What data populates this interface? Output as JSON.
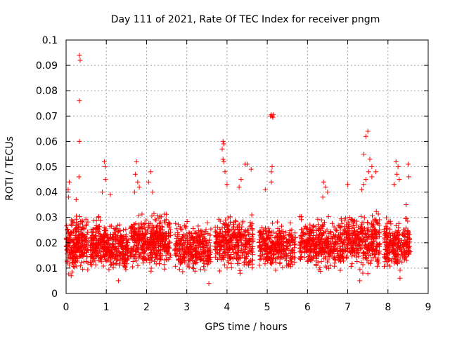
{
  "chart_data": {
    "type": "scatter",
    "title": "Day 111 of 2021, Rate Of TEC Index for receiver pngm",
    "xlabel": "GPS time / hours",
    "ylabel": "ROTI / TECUs",
    "xlim": [
      0,
      9
    ],
    "ylim": [
      0,
      0.1
    ],
    "xticks": [
      0,
      1,
      2,
      3,
      4,
      5,
      6,
      7,
      8,
      9
    ],
    "ytick_labels": [
      "0",
      "0.01",
      "0.02",
      "0.03",
      "0.04",
      "0.05",
      "0.06",
      "0.07",
      "0.08",
      "0.09",
      "0.1"
    ],
    "yticks": [
      0,
      0.01,
      0.02,
      0.03,
      0.04,
      0.05,
      0.06,
      0.07,
      0.08,
      0.09,
      0.1
    ],
    "grid": true,
    "marker": "+",
    "marker_color": "#ff0000",
    "series": [
      {
        "name": "ROTI",
        "clusters": [
          {
            "x_range": [
              0.0,
              0.55
            ],
            "y_range": [
              0.006,
              0.033
            ],
            "count": 260
          },
          {
            "x_range": [
              0.6,
              1.0
            ],
            "y_range": [
              0.007,
              0.032
            ],
            "count": 200
          },
          {
            "x_range": [
              1.0,
              1.55
            ],
            "y_range": [
              0.006,
              0.03
            ],
            "count": 240
          },
          {
            "x_range": [
              1.6,
              2.2
            ],
            "y_range": [
              0.007,
              0.034
            ],
            "count": 260
          },
          {
            "x_range": [
              2.2,
              2.6
            ],
            "y_range": [
              0.008,
              0.034
            ],
            "count": 180
          },
          {
            "x_range": [
              2.7,
              3.6
            ],
            "y_range": [
              0.006,
              0.03
            ],
            "count": 320
          },
          {
            "x_range": [
              3.7,
              4.65
            ],
            "y_range": [
              0.006,
              0.034
            ],
            "count": 360
          },
          {
            "x_range": [
              4.8,
              5.7
            ],
            "y_range": [
              0.007,
              0.03
            ],
            "count": 330
          },
          {
            "x_range": [
              5.8,
              6.8
            ],
            "y_range": [
              0.007,
              0.032
            ],
            "count": 360
          },
          {
            "x_range": [
              6.8,
              7.8
            ],
            "y_range": [
              0.007,
              0.034
            ],
            "count": 380
          },
          {
            "x_range": [
              7.9,
              8.55
            ],
            "y_range": [
              0.007,
              0.032
            ],
            "count": 260
          }
        ],
        "peaks": [
          [
            0.33,
            0.094
          ],
          [
            0.35,
            0.092
          ],
          [
            0.33,
            0.076
          ],
          [
            0.33,
            0.06
          ],
          [
            0.32,
            0.046
          ],
          [
            0.08,
            0.044
          ],
          [
            0.05,
            0.041
          ],
          [
            0.06,
            0.038
          ],
          [
            0.25,
            0.037
          ],
          [
            0.95,
            0.052
          ],
          [
            0.97,
            0.05
          ],
          [
            0.98,
            0.045
          ],
          [
            0.9,
            0.04
          ],
          [
            1.1,
            0.039
          ],
          [
            1.75,
            0.052
          ],
          [
            1.72,
            0.047
          ],
          [
            1.78,
            0.044
          ],
          [
            1.82,
            0.042
          ],
          [
            1.7,
            0.04
          ],
          [
            2.1,
            0.048
          ],
          [
            2.05,
            0.044
          ],
          [
            2.15,
            0.04
          ],
          [
            3.9,
            0.06
          ],
          [
            3.92,
            0.059
          ],
          [
            3.88,
            0.057
          ],
          [
            3.9,
            0.053
          ],
          [
            3.92,
            0.052
          ],
          [
            3.95,
            0.048
          ],
          [
            4.0,
            0.043
          ],
          [
            4.3,
            0.042
          ],
          [
            4.45,
            0.051
          ],
          [
            4.5,
            0.051
          ],
          [
            4.6,
            0.049
          ],
          [
            4.35,
            0.045
          ],
          [
            5.08,
            0.07
          ],
          [
            5.1,
            0.0705
          ],
          [
            5.12,
            0.07
          ],
          [
            5.15,
            0.0705
          ],
          [
            5.14,
            0.0695
          ],
          [
            5.12,
            0.05
          ],
          [
            5.1,
            0.048
          ],
          [
            5.1,
            0.044
          ],
          [
            4.95,
            0.041
          ],
          [
            6.4,
            0.044
          ],
          [
            6.45,
            0.042
          ],
          [
            6.5,
            0.04
          ],
          [
            6.38,
            0.038
          ],
          [
            7.5,
            0.064
          ],
          [
            7.45,
            0.062
          ],
          [
            7.4,
            0.055
          ],
          [
            7.55,
            0.053
          ],
          [
            7.6,
            0.05
          ],
          [
            7.52,
            0.048
          ],
          [
            7.45,
            0.045
          ],
          [
            7.4,
            0.043
          ],
          [
            7.35,
            0.041
          ],
          [
            7.6,
            0.046
          ],
          [
            7.0,
            0.043
          ],
          [
            7.7,
            0.048
          ],
          [
            8.2,
            0.052
          ],
          [
            8.25,
            0.05
          ],
          [
            8.22,
            0.047
          ],
          [
            8.28,
            0.045
          ],
          [
            8.15,
            0.043
          ],
          [
            8.5,
            0.051
          ],
          [
            8.52,
            0.046
          ],
          [
            8.45,
            0.035
          ],
          [
            1.3,
            0.005
          ],
          [
            3.55,
            0.004
          ],
          [
            7.3,
            0.005
          ],
          [
            8.3,
            0.006
          ]
        ]
      }
    ]
  }
}
